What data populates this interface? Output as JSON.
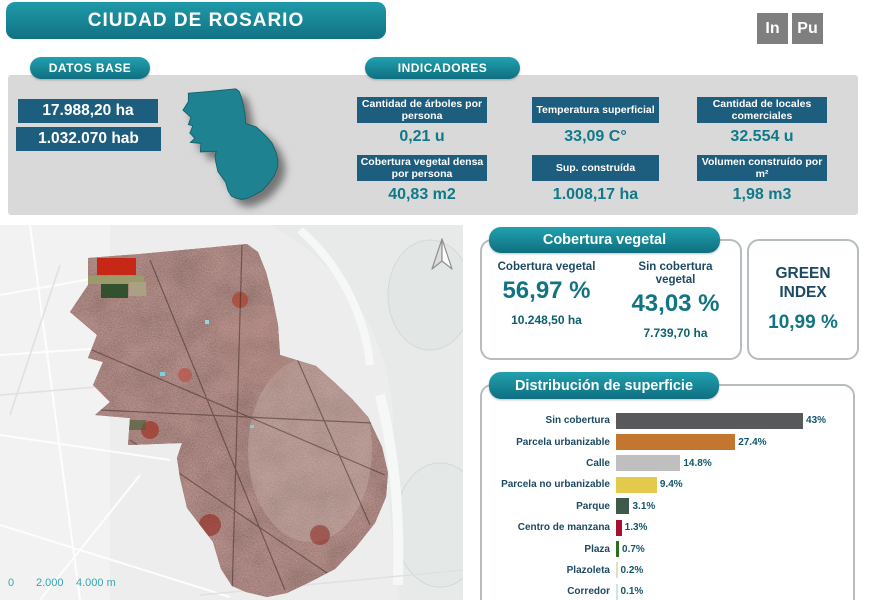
{
  "header": {
    "title": "CIUDAD DE ROSARIO"
  },
  "social": {
    "items": [
      {
        "label": "In"
      },
      {
        "label": "Pu"
      }
    ]
  },
  "datos_base": {
    "title": "DATOS BASE",
    "area": "17.988,20 ha",
    "population": "1.032.070 hab"
  },
  "indicadores": {
    "title": "INDICADORES",
    "items": [
      {
        "label": "Cantidad de árboles por persona",
        "value": "0,21 u"
      },
      {
        "label": "Cobertura vegetal densa por persona",
        "value": "40,83 m2"
      },
      {
        "label": "Temperatura superficial",
        "value": "33,09 C°"
      },
      {
        "label": "Sup. construída",
        "value": "1.008,17 ha"
      },
      {
        "label": "Cantidad de locales comerciales",
        "value": "32.554 u"
      },
      {
        "label": "Volumen construído por m²",
        "value": "1,98 m3"
      }
    ]
  },
  "map": {
    "scale": {
      "start": "0",
      "mid": "2.000",
      "end": "4.000 m"
    }
  },
  "cobertura": {
    "title": "Cobertura vegetal",
    "columns": [
      {
        "label": "Cobertura vegetal",
        "pct": "56,97 %",
        "ha": "10.248,50 ha"
      },
      {
        "label": "Sin cobertura vegetal",
        "pct": "43,03 %",
        "ha": "7.739,70 ha"
      }
    ]
  },
  "green_index": {
    "label": "GREEN INDEX",
    "value": "10,99 %"
  },
  "chart_data": {
    "type": "bar",
    "title": "Distribución de superficie",
    "orientation": "horizontal",
    "categories": [
      "Sin cobertura",
      "Parcela urbanizable",
      "Calle",
      "Parcela no urbanizable",
      "Parque",
      "Centro de manzana",
      "Plaza",
      "Plazoleta",
      "Corredor"
    ],
    "values": [
      43,
      27.4,
      14.8,
      9.4,
      3.1,
      1.3,
      0.7,
      0.2,
      0.1
    ],
    "value_labels": [
      "43%",
      "27.4%",
      "14.8%",
      "9.4%",
      "3.1%",
      "1.3%",
      "0.7%",
      "0.2%",
      "0.1%"
    ],
    "bar_colors": [
      "#58595b",
      "#c3762f",
      "#bfbfbf",
      "#e3c94c",
      "#3e5a49",
      "#a31130",
      "#2c6e1f",
      "#dde4bd",
      "#cfe5ea"
    ],
    "xlim": [
      0,
      45
    ],
    "legend": null,
    "grid": false
  },
  "colors": {
    "accent_teal": "#117c8b",
    "pill_gradient_top": "#21a1af",
    "pill_gradient_bottom": "#0e6f80",
    "dark_blue_box": "#1d5d7d",
    "dark_blue_text": "#1c4a63",
    "value_teal": "#0e7a89",
    "gray_band": "#d9d9d9",
    "social_gray": "#7f7f7f"
  }
}
